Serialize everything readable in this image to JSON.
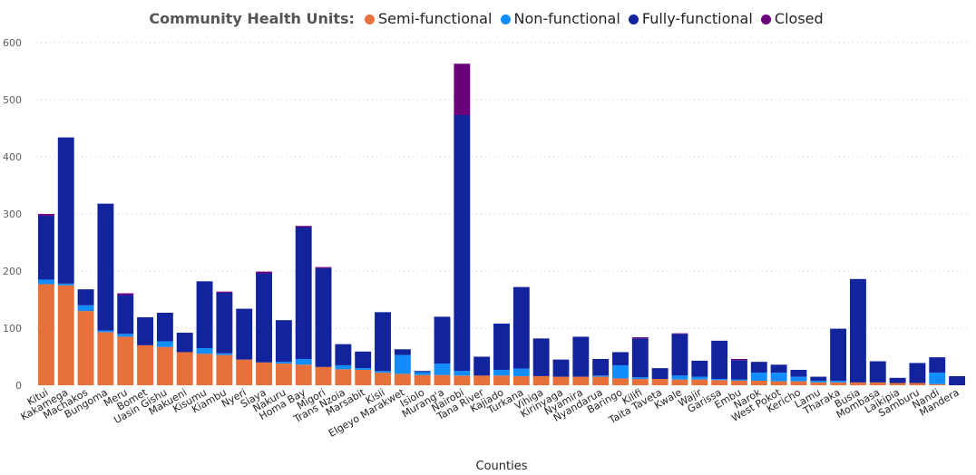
{
  "chart_data": {
    "type": "bar",
    "stacked": true,
    "title": "Community Health Units:",
    "xlabel": "Counties",
    "ylabel": "",
    "ylim": [
      0,
      600
    ],
    "yticks": [
      0,
      100,
      200,
      300,
      400,
      500,
      600
    ],
    "grid": true,
    "legend_position": "top",
    "categories": [
      "Kitui",
      "Kakamega",
      "Machakos",
      "Bungoma",
      "Meru",
      "Bomet",
      "Uasin Gishu",
      "Makueni",
      "Kisumu",
      "Kiambu",
      "Nyeri",
      "Siaya",
      "Nakuru",
      "Homa Bay",
      "Migori",
      "Trans Nzoia",
      "Marsabit",
      "Kisii",
      "Elgeyo Marakwet",
      "Isiolo",
      "Murang'a",
      "Nairobi",
      "Tana River",
      "Kajiado",
      "Turkana",
      "Vihiga",
      "Kirinyaga",
      "Nyamira",
      "Nyandarua",
      "Baringo",
      "Kilifi",
      "Taita Taveta",
      "Kwale",
      "Wajir",
      "Garissa",
      "Embu",
      "Narok",
      "West Pokot",
      "Kericho",
      "Lamu",
      "Tharaka",
      "Busia",
      "Mombasa",
      "Laikipia",
      "Samburu",
      "Nandi",
      "Mandera"
    ],
    "series": [
      {
        "name": "Semi-functional",
        "color": "#E8703A",
        "values": [
          177,
          175,
          130,
          93,
          85,
          70,
          67,
          58,
          55,
          53,
          45,
          40,
          38,
          36,
          32,
          28,
          27,
          22,
          20,
          18,
          18,
          17,
          17,
          17,
          16,
          16,
          15,
          15,
          15,
          12,
          11,
          11,
          10,
          10,
          9,
          8,
          8,
          7,
          7,
          5,
          5,
          5,
          5,
          4,
          4,
          2,
          0
        ]
      },
      {
        "name": "Non-functional",
        "color": "#118DFF",
        "values": [
          8,
          3,
          10,
          3,
          5,
          0,
          10,
          0,
          10,
          3,
          0,
          0,
          3,
          10,
          0,
          7,
          3,
          3,
          33,
          5,
          20,
          8,
          0,
          10,
          13,
          0,
          0,
          0,
          2,
          23,
          3,
          0,
          7,
          5,
          2,
          2,
          14,
          15,
          8,
          3,
          3,
          0,
          0,
          0,
          0,
          20,
          0
        ]
      },
      {
        "name": "Fully-functional",
        "color": "#12239E",
        "values": [
          112,
          256,
          28,
          222,
          68,
          49,
          50,
          34,
          117,
          106,
          89,
          156,
          73,
          231,
          173,
          37,
          29,
          103,
          10,
          2,
          82,
          448,
          33,
          81,
          143,
          66,
          30,
          70,
          29,
          23,
          68,
          19,
          73,
          28,
          67,
          34,
          19,
          14,
          12,
          7,
          91,
          181,
          37,
          9,
          35,
          27,
          16
        ]
      },
      {
        "name": "Closed",
        "color": "#6B007B",
        "values": [
          3,
          0,
          0,
          0,
          3,
          0,
          0,
          0,
          0,
          2,
          0,
          3,
          0,
          2,
          2,
          0,
          0,
          0,
          0,
          0,
          0,
          90,
          0,
          0,
          0,
          0,
          0,
          0,
          0,
          0,
          2,
          0,
          1,
          0,
          0,
          2,
          0,
          0,
          0,
          0,
          0,
          0,
          0,
          0,
          0,
          0,
          0
        ]
      }
    ]
  }
}
